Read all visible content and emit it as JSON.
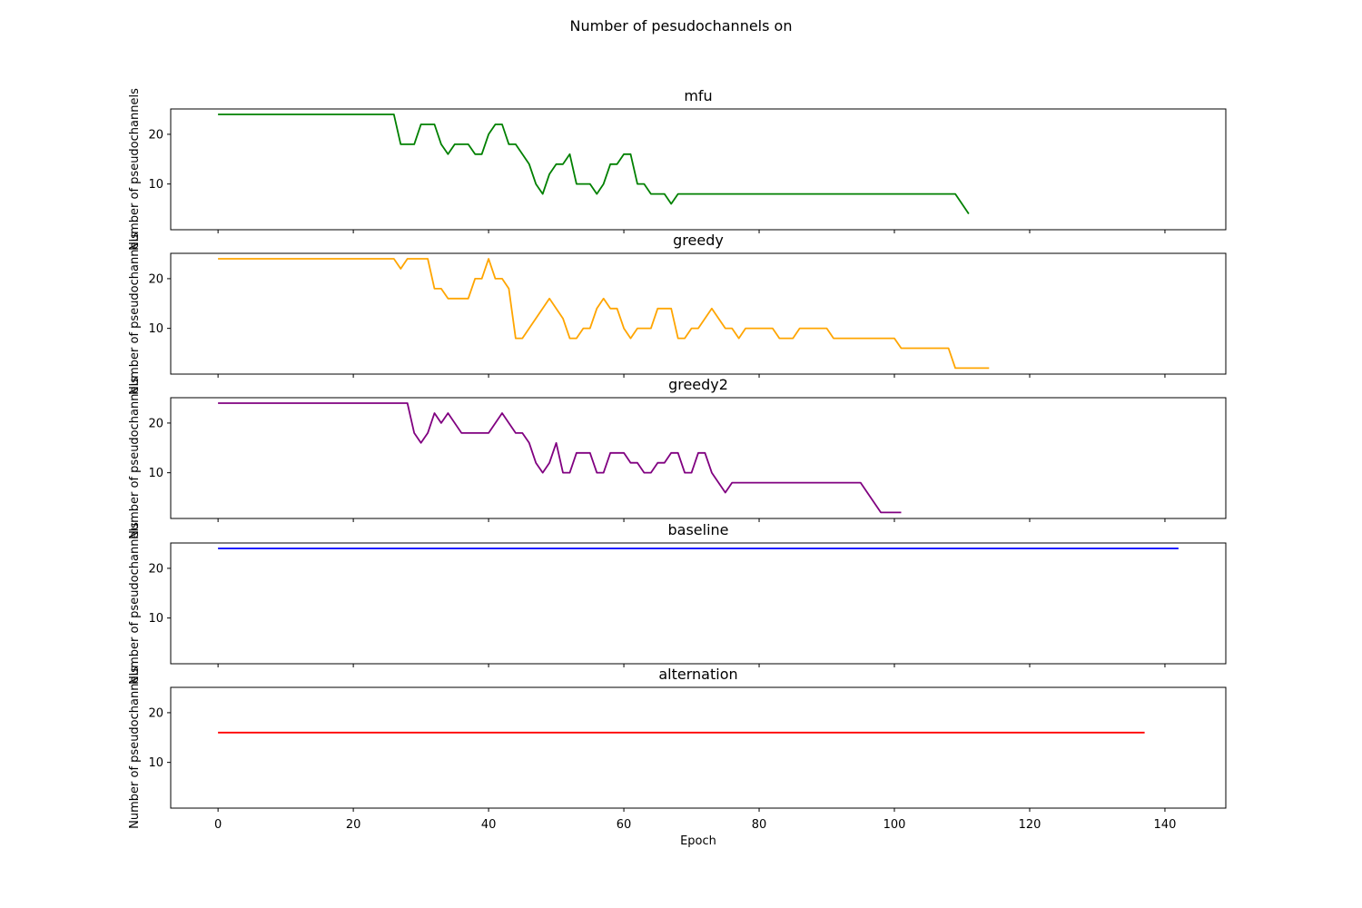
{
  "figure": {
    "suptitle": "Number of pesudochannels on",
    "xlabel": "Epoch",
    "ylabel": "Number of pseudochannels"
  },
  "chart_data": {
    "type": "line",
    "title": "Number of pesudochannels on",
    "xlabel": "Epoch",
    "ylabel": "Number of pseudochannels",
    "xlim": [
      -7,
      149
    ],
    "ylim": [
      0.8,
      25.1
    ],
    "xticks": [
      0,
      20,
      40,
      60,
      80,
      100,
      120,
      140
    ],
    "yticks": [
      10,
      20
    ],
    "sharex": true,
    "grid": false,
    "legend": "none",
    "panels": [
      {
        "title": "mfu",
        "color": "#008000",
        "points": [
          [
            0,
            24
          ],
          [
            26,
            24
          ],
          [
            27,
            18
          ],
          [
            29,
            18
          ],
          [
            30,
            22
          ],
          [
            32,
            22
          ],
          [
            33,
            18
          ],
          [
            34,
            16
          ],
          [
            35,
            18
          ],
          [
            37,
            18
          ],
          [
            38,
            16
          ],
          [
            39,
            16
          ],
          [
            40,
            20
          ],
          [
            41,
            22
          ],
          [
            42,
            22
          ],
          [
            43,
            18
          ],
          [
            44,
            18
          ],
          [
            46,
            14
          ],
          [
            47,
            10
          ],
          [
            48,
            8
          ],
          [
            49,
            12
          ],
          [
            50,
            14
          ],
          [
            51,
            14
          ],
          [
            52,
            16
          ],
          [
            53,
            10
          ],
          [
            55,
            10
          ],
          [
            56,
            8
          ],
          [
            57,
            10
          ],
          [
            58,
            14
          ],
          [
            59,
            14
          ],
          [
            60,
            16
          ],
          [
            61,
            16
          ],
          [
            62,
            10
          ],
          [
            63,
            10
          ],
          [
            64,
            8
          ],
          [
            66,
            8
          ],
          [
            67,
            6
          ],
          [
            68,
            8
          ],
          [
            109,
            8
          ],
          [
            111,
            4
          ]
        ]
      },
      {
        "title": "greedy",
        "color": "#FFA500",
        "points": [
          [
            0,
            24
          ],
          [
            26,
            24
          ],
          [
            27,
            22
          ],
          [
            28,
            24
          ],
          [
            31,
            24
          ],
          [
            32,
            18
          ],
          [
            33,
            18
          ],
          [
            34,
            16
          ],
          [
            37,
            16
          ],
          [
            38,
            20
          ],
          [
            39,
            20
          ],
          [
            40,
            24
          ],
          [
            41,
            20
          ],
          [
            42,
            20
          ],
          [
            43,
            18
          ],
          [
            44,
            8
          ],
          [
            45,
            8
          ],
          [
            49,
            16
          ],
          [
            51,
            12
          ],
          [
            52,
            8
          ],
          [
            53,
            8
          ],
          [
            54,
            10
          ],
          [
            55,
            10
          ],
          [
            56,
            14
          ],
          [
            57,
            16
          ],
          [
            58,
            14
          ],
          [
            59,
            14
          ],
          [
            60,
            10
          ],
          [
            61,
            8
          ],
          [
            62,
            10
          ],
          [
            64,
            10
          ],
          [
            65,
            14
          ],
          [
            67,
            14
          ],
          [
            68,
            8
          ],
          [
            69,
            8
          ],
          [
            70,
            10
          ],
          [
            71,
            10
          ],
          [
            73,
            14
          ],
          [
            75,
            10
          ],
          [
            76,
            10
          ],
          [
            77,
            8
          ],
          [
            78,
            10
          ],
          [
            82,
            10
          ],
          [
            83,
            8
          ],
          [
            85,
            8
          ],
          [
            86,
            10
          ],
          [
            90,
            10
          ],
          [
            91,
            8
          ],
          [
            100,
            8
          ],
          [
            101,
            6
          ],
          [
            108,
            6
          ],
          [
            109,
            2
          ],
          [
            114,
            2
          ]
        ]
      },
      {
        "title": "greedy2",
        "color": "#800080",
        "points": [
          [
            0,
            24
          ],
          [
            28,
            24
          ],
          [
            29,
            18
          ],
          [
            30,
            16
          ],
          [
            31,
            18
          ],
          [
            32,
            22
          ],
          [
            33,
            20
          ],
          [
            34,
            22
          ],
          [
            36,
            18
          ],
          [
            40,
            18
          ],
          [
            42,
            22
          ],
          [
            44,
            18
          ],
          [
            45,
            18
          ],
          [
            46,
            16
          ],
          [
            47,
            12
          ],
          [
            48,
            10
          ],
          [
            49,
            12
          ],
          [
            50,
            16
          ],
          [
            51,
            10
          ],
          [
            52,
            10
          ],
          [
            53,
            14
          ],
          [
            55,
            14
          ],
          [
            56,
            10
          ],
          [
            57,
            10
          ],
          [
            58,
            14
          ],
          [
            60,
            14
          ],
          [
            61,
            12
          ],
          [
            62,
            12
          ],
          [
            63,
            10
          ],
          [
            64,
            10
          ],
          [
            65,
            12
          ],
          [
            66,
            12
          ],
          [
            67,
            14
          ],
          [
            68,
            14
          ],
          [
            69,
            10
          ],
          [
            70,
            10
          ],
          [
            71,
            14
          ],
          [
            72,
            14
          ],
          [
            73,
            10
          ],
          [
            75,
            6
          ],
          [
            76,
            8
          ],
          [
            95,
            8
          ],
          [
            98,
            2
          ],
          [
            101,
            2
          ]
        ]
      },
      {
        "title": "baseline",
        "color": "#0000FF",
        "points": [
          [
            0,
            24
          ],
          [
            142,
            24
          ]
        ]
      },
      {
        "title": "alternation",
        "color": "#FF0000",
        "points": [
          [
            0,
            16
          ],
          [
            137,
            16
          ]
        ]
      }
    ]
  }
}
